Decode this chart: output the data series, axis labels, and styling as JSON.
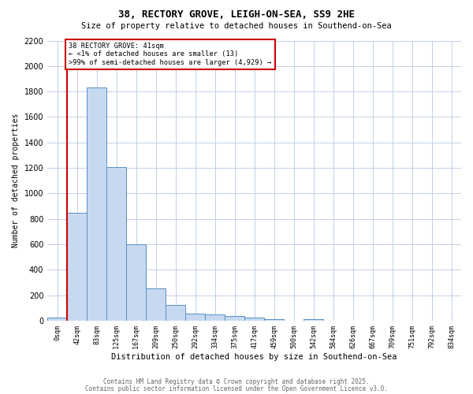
{
  "title1": "38, RECTORY GROVE, LEIGH-ON-SEA, SS9 2HE",
  "title2": "Size of property relative to detached houses in Southend-on-Sea",
  "xlabel": "Distribution of detached houses by size in Southend-on-Sea",
  "ylabel": "Number of detached properties",
  "bin_labels": [
    "0sqm",
    "42sqm",
    "83sqm",
    "125sqm",
    "167sqm",
    "209sqm",
    "250sqm",
    "292sqm",
    "334sqm",
    "375sqm",
    "417sqm",
    "459sqm",
    "500sqm",
    "542sqm",
    "584sqm",
    "626sqm",
    "667sqm",
    "709sqm",
    "751sqm",
    "792sqm",
    "834sqm"
  ],
  "bar_heights": [
    25,
    850,
    1830,
    1210,
    600,
    255,
    125,
    55,
    50,
    35,
    25,
    10,
    0,
    15,
    0,
    0,
    0,
    0,
    0,
    0,
    0
  ],
  "bar_color": "#c6d9f1",
  "bar_edge_color": "#5a8fc3",
  "red_line_bin": 1,
  "annotation_line1": "38 RECTORY GROVE: 41sqm",
  "annotation_line2": "← <1% of detached houses are smaller (13)",
  "annotation_line3": ">99% of semi-detached houses are larger (4,929) →",
  "annotation_box_color": "#ffffff",
  "annotation_border_color": "#cc0000",
  "ylim": [
    0,
    2200
  ],
  "yticks": [
    0,
    200,
    400,
    600,
    800,
    1000,
    1200,
    1400,
    1600,
    1800,
    2000,
    2200
  ],
  "background_color": "#ffffff",
  "grid_color": "#c0d0e8",
  "footer1": "Contains HM Land Registry data © Crown copyright and database right 2025.",
  "footer2": "Contains public sector information licensed under the Open Government Licence v3.0."
}
